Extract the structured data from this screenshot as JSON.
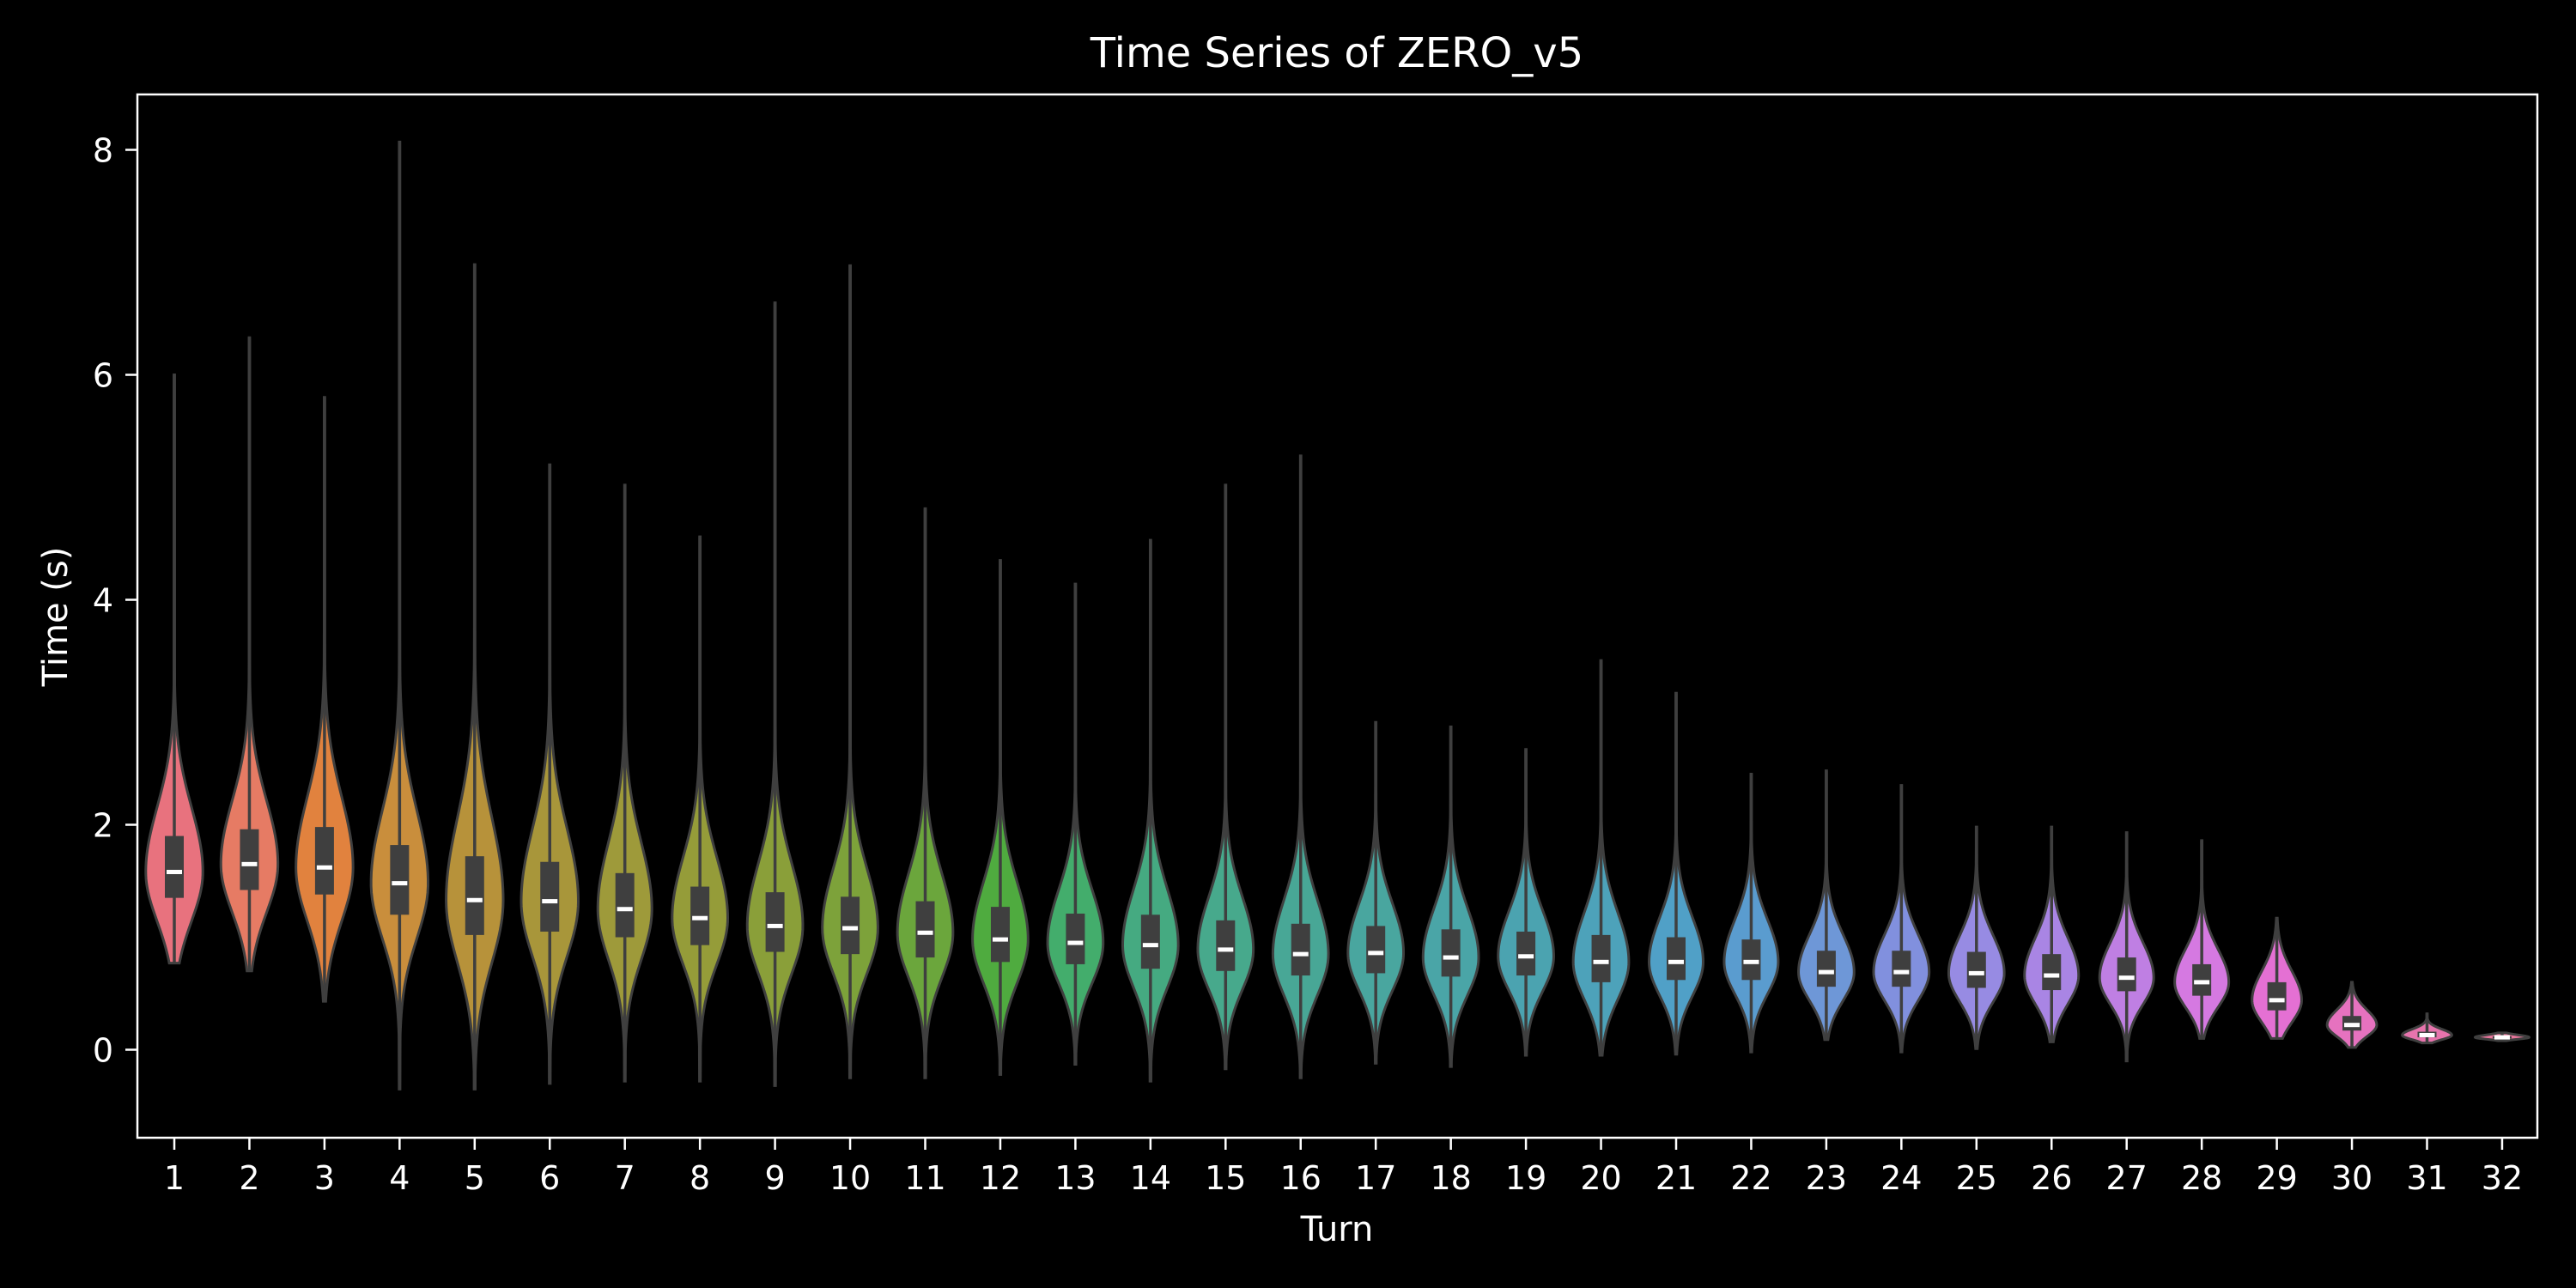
{
  "chart_data": {
    "type": "violin",
    "title": "Time Series of ZERO_v5",
    "xlabel": "Turn",
    "ylabel": "Time (s)",
    "ylim": [
      -0.8,
      8.5
    ],
    "yticks": [
      0,
      2,
      4,
      6,
      8
    ],
    "grid": false,
    "legend": "none",
    "background": "#000000",
    "outline_color": "#3f3f3f",
    "categories": [
      "1",
      "2",
      "3",
      "4",
      "5",
      "6",
      "7",
      "8",
      "9",
      "10",
      "11",
      "12",
      "13",
      "14",
      "15",
      "16",
      "17",
      "18",
      "19",
      "20",
      "21",
      "22",
      "23",
      "24",
      "25",
      "26",
      "27",
      "28",
      "29",
      "30",
      "31",
      "32"
    ],
    "colors": [
      "#e8727e",
      "#e67b64",
      "#e1823e",
      "#c98e3c",
      "#b7923a",
      "#a8963a",
      "#9e9a3a",
      "#959c39",
      "#8a9f39",
      "#7da23a",
      "#6ba63c",
      "#4fab3f",
      "#43ad6c",
      "#45aa81",
      "#47a98c",
      "#48a796",
      "#49a69f",
      "#4aa5a7",
      "#4ba3b0",
      "#4da2ba",
      "#50a0c7",
      "#5a9ccf",
      "#6e97d7",
      "#8190de",
      "#978be3",
      "#a985e4",
      "#bf7fe3",
      "#d579e1",
      "#e470d3",
      "#e672bf",
      "#e774ad",
      "#e8759b"
    ],
    "stats": {
      "median": [
        1.58,
        1.65,
        1.62,
        1.48,
        1.33,
        1.32,
        1.25,
        1.17,
        1.1,
        1.08,
        1.04,
        0.98,
        0.95,
        0.93,
        0.89,
        0.85,
        0.86,
        0.82,
        0.83,
        0.78,
        0.78,
        0.78,
        0.69,
        0.69,
        0.68,
        0.66,
        0.64,
        0.6,
        0.44,
        0.22,
        0.13,
        0.11
      ],
      "q1": [
        1.35,
        1.42,
        1.38,
        1.2,
        1.02,
        1.05,
        1.0,
        0.93,
        0.87,
        0.85,
        0.82,
        0.78,
        0.76,
        0.72,
        0.7,
        0.66,
        0.68,
        0.65,
        0.66,
        0.6,
        0.62,
        0.62,
        0.56,
        0.56,
        0.55,
        0.53,
        0.52,
        0.48,
        0.35,
        0.17,
        0.11,
        0.1
      ],
      "q3": [
        1.9,
        1.96,
        1.98,
        1.82,
        1.72,
        1.67,
        1.57,
        1.45,
        1.4,
        1.36,
        1.32,
        1.27,
        1.21,
        1.2,
        1.15,
        1.12,
        1.1,
        1.07,
        1.05,
        1.02,
        1.0,
        0.98,
        0.88,
        0.88,
        0.87,
        0.85,
        0.82,
        0.76,
        0.6,
        0.3,
        0.16,
        0.12
      ],
      "min": [
        0.77,
        0.7,
        0.43,
        -0.35,
        -0.35,
        -0.3,
        -0.28,
        -0.28,
        -0.32,
        -0.25,
        -0.25,
        -0.22,
        -0.13,
        -0.28,
        -0.17,
        -0.25,
        -0.12,
        -0.15,
        -0.05,
        -0.05,
        -0.04,
        -0.02,
        0.09,
        -0.02,
        0.01,
        0.07,
        -0.1,
        0.1,
        0.1,
        0.02,
        0.06,
        0.08
      ],
      "max": [
        6.0,
        6.33,
        5.8,
        8.07,
        6.98,
        5.2,
        5.02,
        4.56,
        6.64,
        6.97,
        4.81,
        4.35,
        4.14,
        4.53,
        5.02,
        5.28,
        2.91,
        2.87,
        2.67,
        3.46,
        3.17,
        2.45,
        2.48,
        2.35,
        1.98,
        1.98,
        1.93,
        1.86,
        1.17,
        0.6,
        0.32,
        0.15
      ],
      "half_width": [
        0.38,
        0.38,
        0.38,
        0.38,
        0.38,
        0.38,
        0.36,
        0.37,
        0.37,
        0.37,
        0.37,
        0.37,
        0.37,
        0.37,
        0.37,
        0.37,
        0.37,
        0.37,
        0.37,
        0.37,
        0.36,
        0.36,
        0.37,
        0.37,
        0.37,
        0.36,
        0.36,
        0.36,
        0.33,
        0.33,
        0.33,
        0.36
      ]
    }
  }
}
